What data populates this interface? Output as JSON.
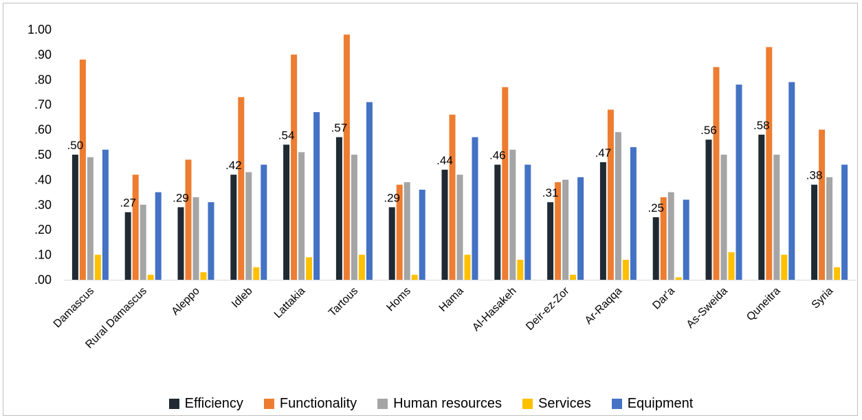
{
  "chart_data": {
    "type": "bar",
    "ylim": [
      0,
      1
    ],
    "yticks": [
      "1.00",
      ".90",
      ".80",
      ".70",
      ".60",
      ".50",
      ".40",
      ".30",
      ".20",
      ".10",
      ".00"
    ],
    "grid": false,
    "legend_position": "bottom",
    "categories": [
      "Damascus",
      "Rural Damascus",
      "Aleppo",
      "Idleb",
      "Lattakia",
      "Tartous",
      "Homs",
      "Hama",
      "Al-Hasakeh",
      "Deir-ez-Zor",
      "Ar-Raqqa",
      "Dar'a",
      "As-Sweida",
      "Quneitra",
      "Syria"
    ],
    "series": [
      {
        "name": "Efficiency",
        "color": "#1f2a33",
        "values": [
          0.5,
          0.27,
          0.29,
          0.42,
          0.54,
          0.57,
          0.29,
          0.44,
          0.46,
          0.31,
          0.47,
          0.25,
          0.56,
          0.58,
          0.38
        ]
      },
      {
        "name": "Functionality",
        "color": "#ed7d31",
        "values": [
          0.88,
          0.42,
          0.48,
          0.73,
          0.9,
          0.98,
          0.38,
          0.66,
          0.77,
          0.39,
          0.68,
          0.33,
          0.85,
          0.93,
          0.6
        ]
      },
      {
        "name": "Human resources",
        "color": "#a5a5a5",
        "values": [
          0.49,
          0.3,
          0.33,
          0.43,
          0.51,
          0.5,
          0.39,
          0.42,
          0.52,
          0.4,
          0.59,
          0.35,
          0.5,
          0.5,
          0.41
        ]
      },
      {
        "name": "Services",
        "color": "#ffc000",
        "values": [
          0.1,
          0.02,
          0.03,
          0.05,
          0.09,
          0.1,
          0.02,
          0.1,
          0.08,
          0.02,
          0.08,
          0.01,
          0.11,
          0.1,
          0.05
        ]
      },
      {
        "name": "Equipment",
        "color": "#4472c4",
        "values": [
          0.52,
          0.35,
          0.31,
          0.46,
          0.67,
          0.71,
          0.36,
          0.57,
          0.46,
          0.41,
          0.53,
          0.32,
          0.78,
          0.79,
          0.46
        ]
      }
    ],
    "data_labels": [
      ".50",
      ".27",
      ".29",
      ".42",
      ".54",
      ".57",
      ".29",
      ".44",
      ".46",
      ".31",
      ".47",
      ".25",
      ".56",
      ".58",
      ".38"
    ]
  }
}
